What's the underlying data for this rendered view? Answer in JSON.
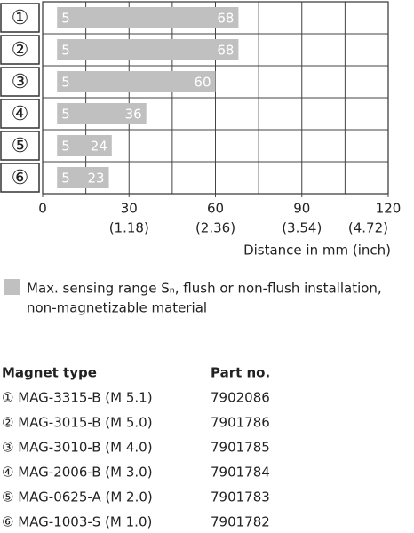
{
  "chart_data": {
    "type": "range-bar",
    "categories": [
      "①",
      "②",
      "③",
      "④",
      "⑤",
      "⑥"
    ],
    "starts": [
      5,
      5,
      5,
      5,
      5,
      5
    ],
    "values": [
      68,
      68,
      60,
      36,
      24,
      23
    ],
    "color": "#c0c0c0",
    "xlim": [
      0,
      120
    ],
    "xticks": [
      0,
      30,
      60,
      90,
      120
    ],
    "xticks_secondary": [
      null,
      "(1.18)",
      "(2.36)",
      "(3.54)",
      "(4.72)"
    ],
    "xgrid": [
      15,
      30,
      45,
      60,
      75,
      90,
      105
    ],
    "xlabel": "Distance in mm (inch)",
    "legend_lines": [
      "Max. sensing range Sₙ, flush or non-flush installation,",
      "non-magnetizable material"
    ]
  },
  "table": {
    "header": [
      "Magnet type",
      "Part no."
    ],
    "rows": [
      [
        "① MAG-3315-B (M 5.1)",
        "7902086"
      ],
      [
        "② MAG-3015-B (M 5.0)",
        "7901786"
      ],
      [
        "③ MAG-3010-B (M 4.0)",
        "7901785"
      ],
      [
        "④ MAG-2006-B (M 3.0)",
        "7901784"
      ],
      [
        "⑤ MAG-0625-A (M 2.0)",
        "7901783"
      ],
      [
        "⑥ MAG-1003-S (M 1.0)",
        "7901782"
      ]
    ]
  }
}
